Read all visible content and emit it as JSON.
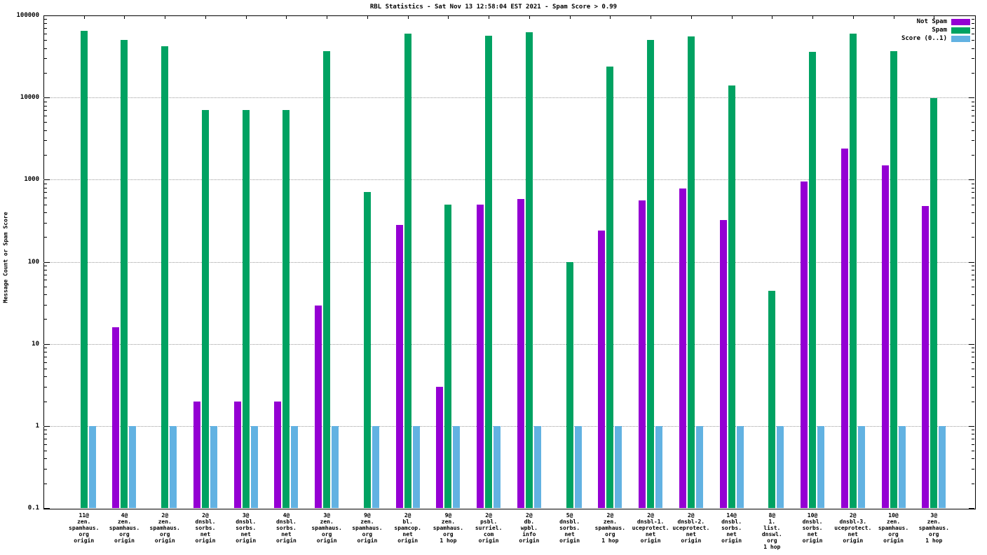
{
  "title": "RBL Statistics - Sat Nov 13 12:58:04 EST 2021 - Spam Score > 0.99",
  "ylabel": "Message Count or Spam Score",
  "chart_data": {
    "type": "bar",
    "scale": "log",
    "ylim": [
      0.1,
      100000
    ],
    "yticks": [
      "0.1",
      "1",
      "10",
      "100",
      "1000",
      "10000",
      "100000"
    ],
    "ytick_values": [
      0.1,
      1,
      10,
      100,
      1000,
      10000,
      100000
    ],
    "grid": true,
    "legend_position": "top-right",
    "categories": [
      [
        "11@",
        "zen.",
        "spamhaus.",
        "org",
        "origin"
      ],
      [
        "4@",
        "zen.",
        "spamhaus.",
        "org",
        "origin"
      ],
      [
        "2@",
        "zen.",
        "spamhaus.",
        "org",
        "origin"
      ],
      [
        "2@",
        "dnsbl.",
        "sorbs.",
        "net",
        "origin"
      ],
      [
        "3@",
        "dnsbl.",
        "sorbs.",
        "net",
        "origin"
      ],
      [
        "4@",
        "dnsbl.",
        "sorbs.",
        "net",
        "origin"
      ],
      [
        "3@",
        "zen.",
        "spamhaus.",
        "org",
        "origin"
      ],
      [
        "9@",
        "zen.",
        "spamhaus.",
        "org",
        "origin"
      ],
      [
        "2@",
        "bl.",
        "spamcop.",
        "net",
        "origin"
      ],
      [
        "9@",
        "zen.",
        "spamhaus.",
        "org",
        "1 hop"
      ],
      [
        "2@",
        "psbl.",
        "surriel.",
        "com",
        "origin"
      ],
      [
        "2@",
        "db.",
        "wpbl.",
        "info",
        "origin"
      ],
      [
        "5@",
        "dnsbl.",
        "sorbs.",
        "net",
        "origin"
      ],
      [
        "2@",
        "zen.",
        "spamhaus.",
        "org",
        "1 hop"
      ],
      [
        "2@",
        "dnsbl-1.",
        "uceprotect.",
        "net",
        "origin"
      ],
      [
        "2@",
        "dnsbl-2.",
        "uceprotect.",
        "net",
        "origin"
      ],
      [
        "14@",
        "dnsbl.",
        "sorbs.",
        "net",
        "origin"
      ],
      [
        "8@",
        "1.",
        "list.",
        "dnswl.",
        "org",
        "1 hop"
      ],
      [
        "10@",
        "dnsbl.",
        "sorbs.",
        "net",
        "origin"
      ],
      [
        "2@",
        "dnsbl-3.",
        "uceprotect.",
        "net",
        "origin"
      ],
      [
        "10@",
        "zen.",
        "spamhaus.",
        "org",
        "origin"
      ],
      [
        "3@",
        "zen.",
        "spamhaus.",
        "org",
        "1 hop"
      ]
    ],
    "series": [
      {
        "name": "Not Spam",
        "color": "#9400d3",
        "values": [
          null,
          16,
          null,
          2,
          2,
          2,
          29,
          null,
          280,
          3,
          500,
          575,
          null,
          240,
          560,
          780,
          320,
          null,
          950,
          2400,
          1500,
          480
        ]
      },
      {
        "name": "Spam",
        "color": "#00a262",
        "values": [
          65000,
          50000,
          42000,
          7000,
          7000,
          7000,
          37000,
          700,
          60000,
          500,
          57000,
          63000,
          100,
          24000,
          50000,
          55000,
          14000,
          44,
          36000,
          60000,
          37000,
          9800
        ]
      },
      {
        "name": "Score (0..1)",
        "color": "#62b2e2",
        "values": [
          1,
          1,
          1,
          1,
          1,
          1,
          1,
          1,
          1,
          1,
          1,
          1,
          1,
          1,
          1,
          1,
          1,
          1,
          1,
          1,
          1,
          1
        ]
      }
    ]
  }
}
